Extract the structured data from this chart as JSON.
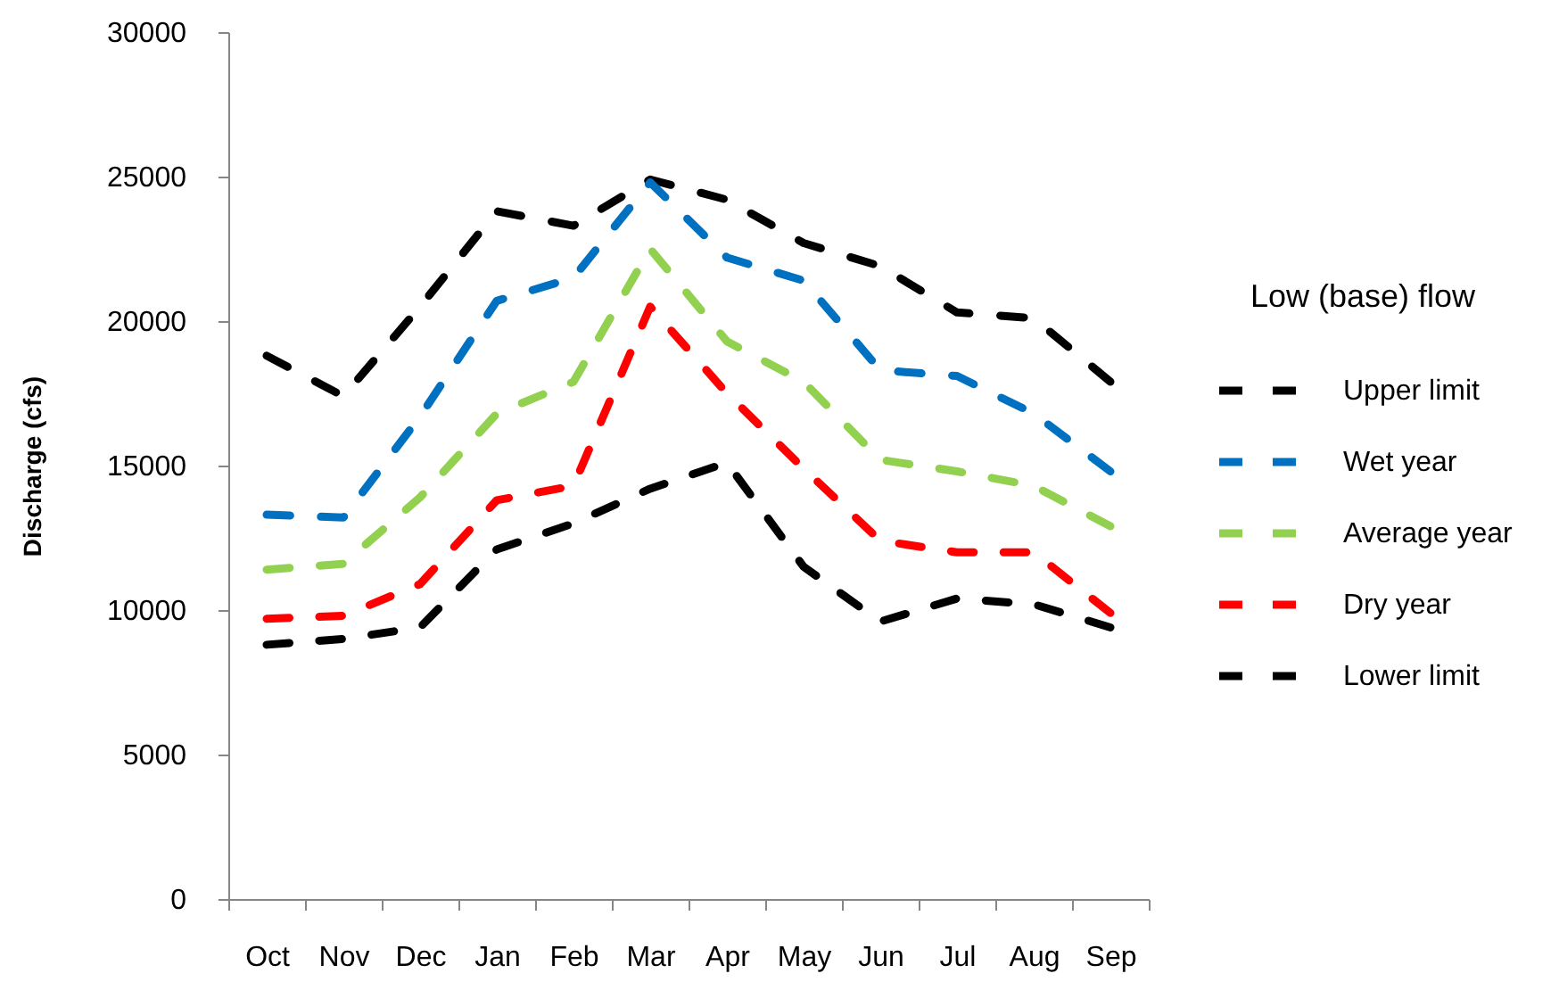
{
  "chart_data": {
    "type": "line",
    "ylabel": "Discharge (cfs)",
    "legend_title": "Low (base) flow",
    "categories": [
      "Oct",
      "Nov",
      "Dec",
      "Jan",
      "Feb",
      "Mar",
      "Apr",
      "May",
      "Jun",
      "Jul",
      "Aug",
      "Sep"
    ],
    "series": [
      {
        "name": "Upper limit",
        "color": "#000000",
        "values": [
          18800,
          17400,
          20500,
          23800,
          23300,
          24900,
          24200,
          22700,
          21900,
          20300,
          20100,
          17900
        ]
      },
      {
        "name": "Wet year",
        "color": "#0070c0",
        "values": [
          13300,
          13200,
          16700,
          20700,
          21500,
          24800,
          22200,
          21400,
          18300,
          18100,
          16800,
          14800
        ]
      },
      {
        "name": "Average year",
        "color": "#92d050",
        "values": [
          11400,
          11600,
          13900,
          16800,
          17900,
          22500,
          19300,
          17900,
          15200,
          14800,
          14300,
          12900
        ]
      },
      {
        "name": "Dry year",
        "color": "#ff0000",
        "values": [
          9700,
          9800,
          10900,
          13800,
          14300,
          20500,
          17500,
          14900,
          12400,
          12000,
          12000,
          9900
        ]
      },
      {
        "name": "Lower limit",
        "color": "#000000",
        "values": [
          8800,
          9000,
          9400,
          12100,
          13000,
          14200,
          15100,
          11500,
          9600,
          10400,
          10200,
          9400
        ]
      }
    ],
    "ylim": [
      0,
      30000
    ],
    "yticks": [
      0,
      5000,
      10000,
      15000,
      20000,
      25000,
      30000
    ],
    "legend": "right",
    "line_style": "dashed"
  }
}
